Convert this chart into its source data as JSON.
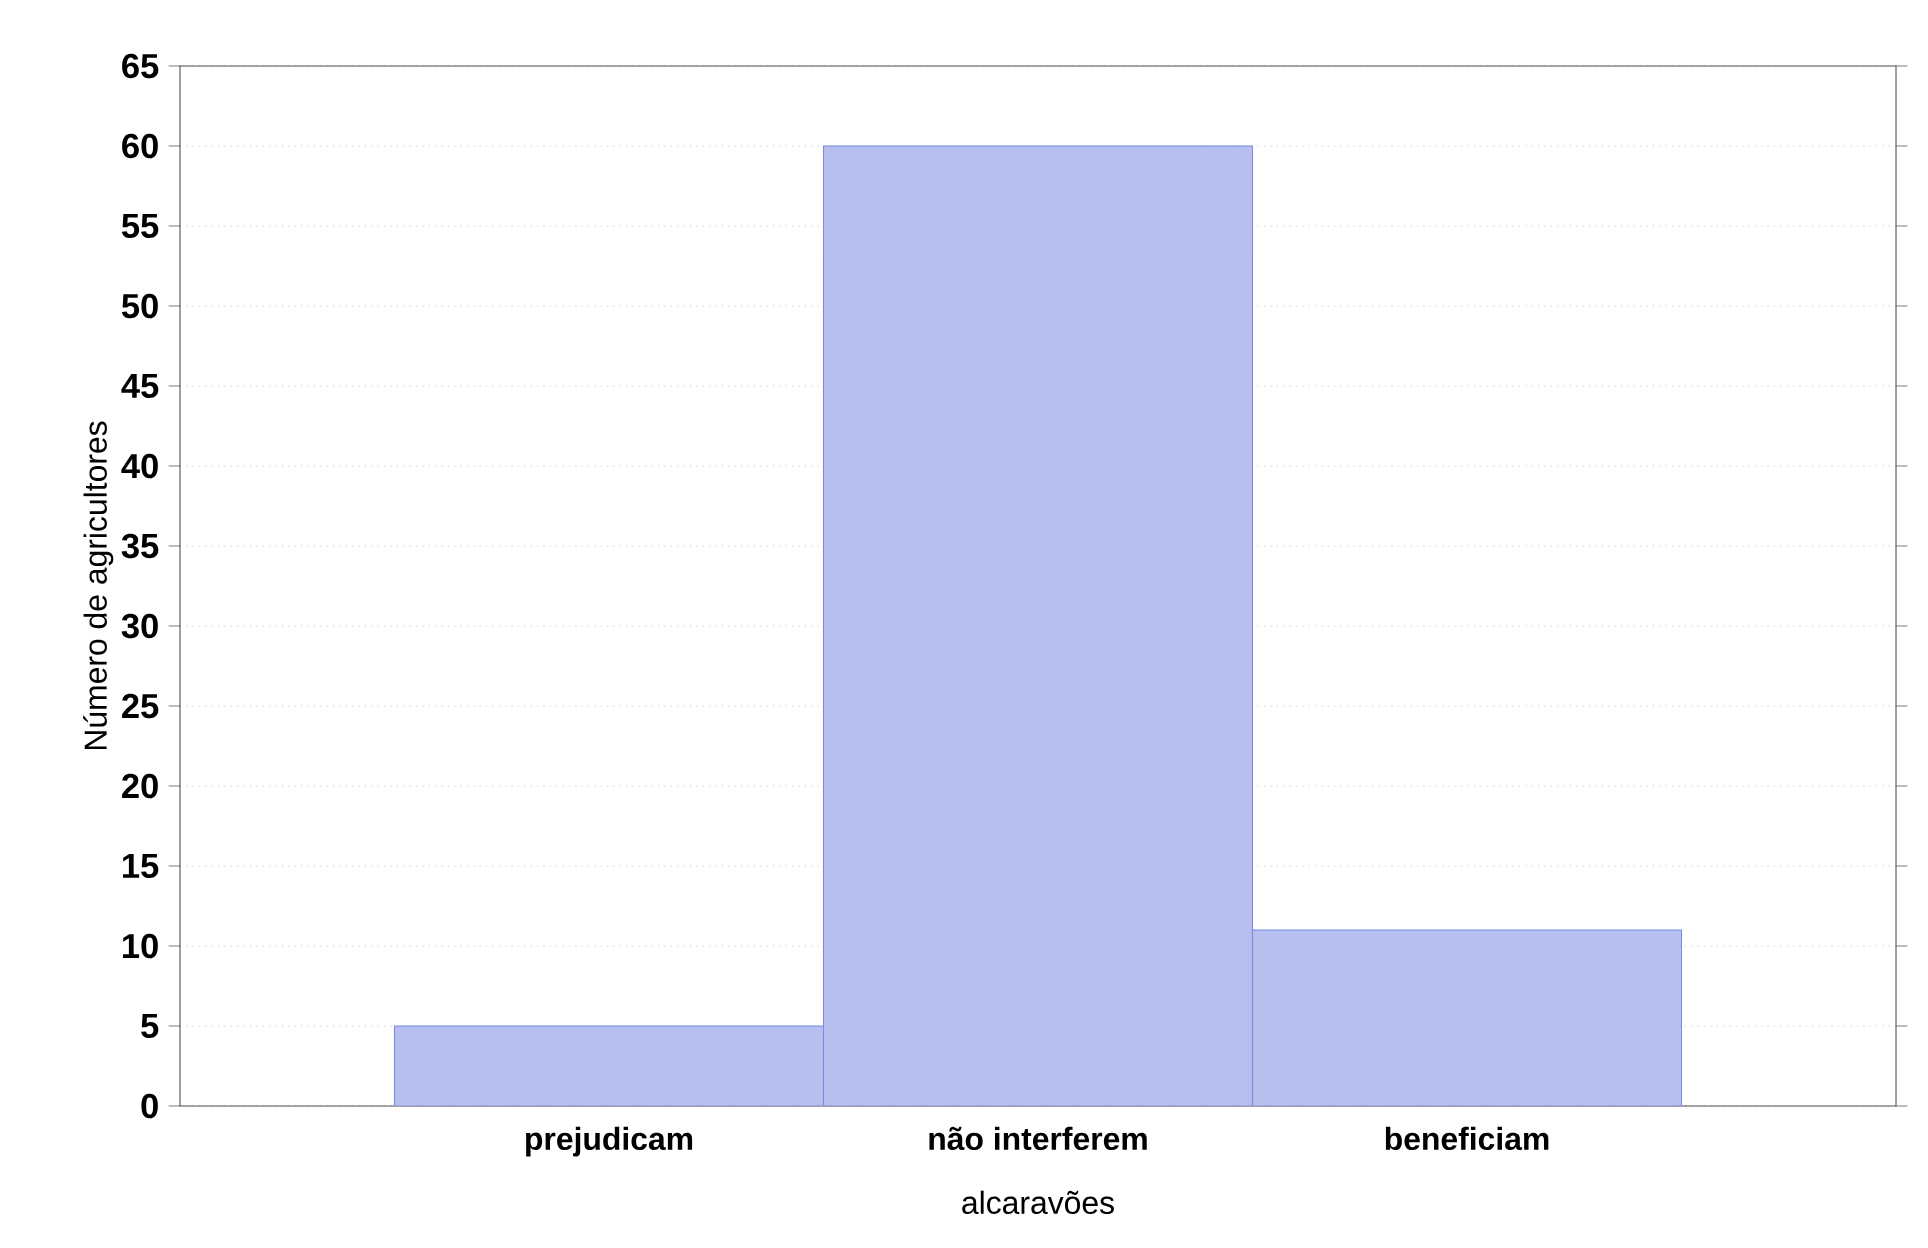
{
  "chart_data": {
    "type": "bar",
    "xlabel": "alcaravões",
    "ylabel": "Número de agricultores",
    "categories": [
      "prejudicam",
      "não interferem",
      "beneficiam"
    ],
    "values": [
      5,
      60,
      11
    ],
    "color": "#7b8be0",
    "ylim": [
      0,
      65
    ],
    "yticks": [
      0,
      5,
      10,
      15,
      20,
      25,
      30,
      35,
      40,
      45,
      50,
      55,
      60,
      65
    ],
    "grid": "y"
  }
}
